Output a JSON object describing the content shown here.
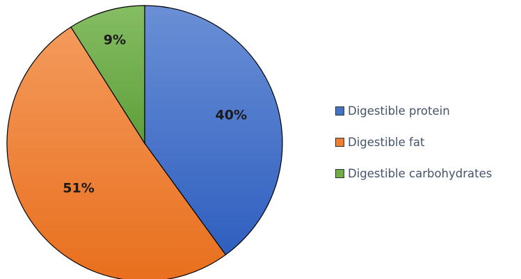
{
  "chart_data": {
    "type": "pie",
    "title": "",
    "categories": [
      "Digestible protein",
      "Digestible fat",
      "Digestible carbohydrates"
    ],
    "values": [
      40,
      51,
      9
    ],
    "data_labels": [
      "40%",
      "51%",
      "9%"
    ],
    "colors": [
      "#4472c4",
      "#ed7d31",
      "#70ad47"
    ],
    "start_angle": "12 o'clock",
    "direction": "clockwise",
    "legend_position": "right"
  }
}
